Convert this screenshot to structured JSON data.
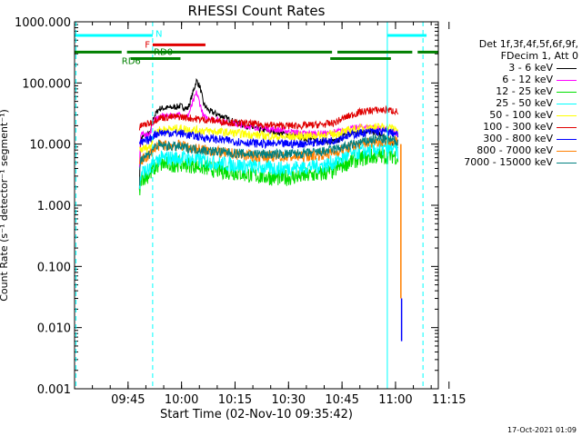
{
  "chart_data": {
    "type": "line",
    "title": "RHESSI Count Rates",
    "xlabel": "Start Time (02-Nov-10 09:35:42)",
    "ylabel": "Count Rate (s⁻¹ detector⁻¹ segment⁻¹)",
    "yscale": "log",
    "ylim": [
      0.001,
      1000
    ],
    "xlim_min": [
      -5.7,
      96.3
    ],
    "x_units": "minutes after 09:35:42",
    "y_ticks": [
      "0.001",
      "0.010",
      "0.100",
      "1.000",
      "10.000",
      "100.000",
      "1000.000"
    ],
    "x_ticks": [
      {
        "label": "09:45",
        "t": 9.3
      },
      {
        "label": "10:00",
        "t": 24.3
      },
      {
        "label": "10:15",
        "t": 39.3
      },
      {
        "label": "10:30",
        "t": 54.3
      },
      {
        "label": "10:45",
        "t": 69.3
      },
      {
        "label": "11:00",
        "t": 84.3
      },
      {
        "label": "11:15",
        "t": 99.3
      }
    ],
    "legend": {
      "header": [
        "Det 1f,3f,4f,5f,6f,9f,",
        "FDecim 1, Att 0"
      ],
      "entries": [
        {
          "label": "3 - 6 keV",
          "color": "#000000"
        },
        {
          "label": "6 - 12 keV",
          "color": "#ff00ff"
        },
        {
          "label": "12 - 25 keV",
          "color": "#00e000"
        },
        {
          "label": "25 - 50 keV",
          "color": "#00ffff"
        },
        {
          "label": "50 - 100 keV",
          "color": "#ffff00"
        },
        {
          "label": "100 - 300 keV",
          "color": "#e00000"
        },
        {
          "label": "300 - 800 keV",
          "color": "#0000ff"
        },
        {
          "label": "800 - 7000 keV",
          "color": "#ff8000"
        },
        {
          "label": "7000 - 15000 keV",
          "color": "#008080"
        }
      ]
    },
    "series": [
      {
        "name": "3 - 6 keV",
        "color": "#000000",
        "points": [
          [
            12.5,
            2
          ],
          [
            12.8,
            12
          ],
          [
            14,
            14
          ],
          [
            15.5,
            15
          ],
          [
            16.5,
            28
          ],
          [
            18,
            38
          ],
          [
            22,
            40
          ],
          [
            24,
            42
          ],
          [
            26,
            38
          ],
          [
            26.5,
            45
          ],
          [
            27.5,
            70
          ],
          [
            28.5,
            110
          ],
          [
            29.5,
            85
          ],
          [
            30.5,
            45
          ],
          [
            32,
            35
          ],
          [
            36,
            28
          ],
          [
            40,
            22
          ],
          [
            45,
            18
          ],
          [
            50,
            16
          ],
          [
            55,
            14
          ],
          [
            60,
            12
          ],
          [
            66,
            11
          ],
          [
            68,
            11
          ],
          [
            70,
            14
          ],
          [
            74,
            16
          ],
          [
            78,
            16
          ],
          [
            80,
            14
          ],
          [
            82,
            12
          ],
          [
            84,
            10
          ],
          [
            85,
            9
          ]
        ]
      },
      {
        "name": "6 - 12 keV",
        "color": "#ff00ff",
        "points": [
          [
            12.5,
            4
          ],
          [
            12.8,
            14
          ],
          [
            15.5,
            15
          ],
          [
            16.5,
            24
          ],
          [
            18,
            28
          ],
          [
            24,
            30
          ],
          [
            26,
            28
          ],
          [
            27,
            40
          ],
          [
            28.5,
            70
          ],
          [
            29.5,
            45
          ],
          [
            30.5,
            28
          ],
          [
            34,
            25
          ],
          [
            38,
            22
          ],
          [
            42,
            20
          ],
          [
            48,
            18
          ],
          [
            52,
            17
          ],
          [
            55,
            16
          ],
          [
            58,
            15
          ],
          [
            62,
            15
          ],
          [
            66,
            15
          ],
          [
            68,
            16
          ],
          [
            70,
            17
          ],
          [
            74,
            19
          ],
          [
            78,
            19
          ],
          [
            82,
            17
          ],
          [
            84,
            15
          ],
          [
            85,
            14
          ]
        ]
      },
      {
        "name": "12 - 25 keV",
        "color": "#00e000",
        "points": [
          [
            12.5,
            1.5
          ],
          [
            13,
            2.8
          ],
          [
            15.5,
            3.2
          ],
          [
            16.5,
            4
          ],
          [
            18,
            4.6
          ],
          [
            24,
            4.8
          ],
          [
            28,
            4.5
          ],
          [
            34,
            3.8
          ],
          [
            40,
            3.4
          ],
          [
            46,
            3
          ],
          [
            52,
            2.8
          ],
          [
            58,
            3
          ],
          [
            64,
            3.3
          ],
          [
            67,
            3.7
          ],
          [
            70,
            4.8
          ],
          [
            74,
            5.8
          ],
          [
            78,
            6.3
          ],
          [
            82,
            6.5
          ],
          [
            84,
            6.5
          ],
          [
            85,
            6
          ]
        ]
      },
      {
        "name": "25 - 50 keV",
        "color": "#00ffff",
        "points": [
          [
            12.5,
            1.8
          ],
          [
            13,
            3.5
          ],
          [
            15.5,
            3.8
          ],
          [
            16.5,
            5
          ],
          [
            18,
            5.8
          ],
          [
            24,
            6
          ],
          [
            28,
            5.6
          ],
          [
            34,
            5
          ],
          [
            40,
            4.5
          ],
          [
            46,
            4.2
          ],
          [
            52,
            4
          ],
          [
            58,
            4.2
          ],
          [
            64,
            4.5
          ],
          [
            67,
            5
          ],
          [
            70,
            6.2
          ],
          [
            74,
            7.5
          ],
          [
            78,
            8
          ],
          [
            82,
            8.5
          ],
          [
            84,
            8.5
          ],
          [
            85,
            7.5
          ]
        ]
      },
      {
        "name": "50 - 100 keV",
        "color": "#ffff00",
        "points": [
          [
            12.5,
            8
          ],
          [
            15.5,
            9
          ],
          [
            16.5,
            14
          ],
          [
            18,
            17
          ],
          [
            24,
            18
          ],
          [
            28,
            17
          ],
          [
            34,
            16
          ],
          [
            40,
            15
          ],
          [
            46,
            14
          ],
          [
            52,
            13
          ],
          [
            58,
            13.5
          ],
          [
            64,
            14
          ],
          [
            67,
            14.5
          ],
          [
            70,
            16
          ],
          [
            74,
            18
          ],
          [
            78,
            19
          ],
          [
            82,
            19
          ],
          [
            84,
            18
          ],
          [
            85,
            17
          ]
        ]
      },
      {
        "name": "100 - 300 keV",
        "color": "#e00000",
        "points": [
          [
            12.5,
            18
          ],
          [
            13,
            20
          ],
          [
            15.5,
            22
          ],
          [
            16.5,
            24
          ],
          [
            18,
            27
          ],
          [
            24,
            28
          ],
          [
            28,
            26
          ],
          [
            34,
            24
          ],
          [
            40,
            22
          ],
          [
            46,
            21
          ],
          [
            52,
            20
          ],
          [
            58,
            20
          ],
          [
            64,
            21
          ],
          [
            67,
            22
          ],
          [
            70,
            27
          ],
          [
            74,
            33
          ],
          [
            78,
            36
          ],
          [
            82,
            36
          ],
          [
            84,
            35
          ],
          [
            85,
            33
          ]
        ]
      },
      {
        "name": "300 - 800 keV",
        "color": "#0000ff",
        "points": [
          [
            12.5,
            10
          ],
          [
            15.5,
            12
          ],
          [
            16.5,
            14
          ],
          [
            18,
            15.5
          ],
          [
            24,
            15
          ],
          [
            28,
            13.5
          ],
          [
            34,
            12
          ],
          [
            40,
            11
          ],
          [
            46,
            10.2
          ],
          [
            52,
            10
          ],
          [
            58,
            10.2
          ],
          [
            64,
            11
          ],
          [
            67,
            11.5
          ],
          [
            70,
            13.5
          ],
          [
            74,
            15
          ],
          [
            78,
            16
          ],
          [
            82,
            16
          ],
          [
            84,
            15
          ],
          [
            85,
            14
          ]
        ]
      },
      {
        "name": "800 - 7000 keV",
        "color": "#ff8000",
        "points": [
          [
            12.5,
            5
          ],
          [
            15.5,
            7
          ],
          [
            16.5,
            8.5
          ],
          [
            18,
            9.5
          ],
          [
            24,
            9.5
          ],
          [
            28,
            8.5
          ],
          [
            34,
            7.5
          ],
          [
            40,
            6.8
          ],
          [
            46,
            6.3
          ],
          [
            52,
            6.2
          ],
          [
            58,
            6.3
          ],
          [
            64,
            6.8
          ],
          [
            67,
            7.2
          ],
          [
            70,
            8.5
          ],
          [
            74,
            10
          ],
          [
            78,
            11
          ],
          [
            82,
            11.5
          ],
          [
            84,
            11
          ],
          [
            85,
            10.5
          ]
        ]
      },
      {
        "name": "7000 - 15000 keV",
        "color": "#008080",
        "points": [
          [
            12.5,
            4
          ],
          [
            13,
            6
          ],
          [
            15.5,
            7
          ],
          [
            16.5,
            9
          ],
          [
            18,
            9.5
          ],
          [
            24,
            9
          ],
          [
            30,
            8
          ],
          [
            40,
            7
          ],
          [
            50,
            6.8
          ],
          [
            58,
            7
          ],
          [
            64,
            7.5
          ],
          [
            70,
            9
          ],
          [
            78,
            12
          ],
          [
            82,
            12
          ],
          [
            85,
            11
          ]
        ]
      }
    ],
    "tail_drops": [
      {
        "color": "#ff8000",
        "t": 85.8,
        "y_from": 10,
        "y_to": 0.03
      },
      {
        "color": "#0000ff",
        "t": 86.0,
        "y_from": 0.03,
        "y_to": 0.006
      }
    ],
    "vertical_markers": [
      {
        "t": -5.3,
        "color": "#00ffff",
        "style": "dashed"
      },
      {
        "t": 16.2,
        "color": "#00ffff",
        "style": "dashed"
      },
      {
        "t": 82.0,
        "color": "#00ffff",
        "style": "solid"
      },
      {
        "t": 92.0,
        "color": "#00ffff",
        "style": "dashed"
      }
    ],
    "flag_bars": [
      {
        "label": "N",
        "color": "#00ffff",
        "y": 600,
        "segments": [
          [
            -5.7,
            16.2
          ],
          [
            82.0,
            93.0
          ]
        ]
      },
      {
        "label": "F",
        "color": "#e00000",
        "y": 420,
        "segments": [
          [
            16.2,
            31.0
          ]
        ]
      },
      {
        "label": "RD0",
        "color": "#008000",
        "y": 320,
        "segments": [
          [
            -5.7,
            89.0
          ],
          [
            90.5,
            96.3
          ]
        ],
        "gaps": [
          [
            7.5,
            9.0
          ],
          [
            66.5,
            68.0
          ]
        ]
      },
      {
        "label": "RD6",
        "color": "#008000",
        "y": 250,
        "segments": [
          [
            10.0,
            24.0
          ],
          [
            66.0,
            83.0
          ]
        ]
      }
    ],
    "flag_labels": [
      {
        "text": "N",
        "color": "#00ffff",
        "t": 17.0,
        "y": 650
      },
      {
        "text": "F",
        "color": "#e00000",
        "t": 14.0,
        "y": 430
      },
      {
        "text": "RD0",
        "color": "#008000",
        "t": 16.5,
        "y": 330
      },
      {
        "text": "RD6",
        "color": "#008000",
        "t": 7.5,
        "y": 235
      }
    ]
  },
  "timestamp": "17-Oct-2021 01:09"
}
